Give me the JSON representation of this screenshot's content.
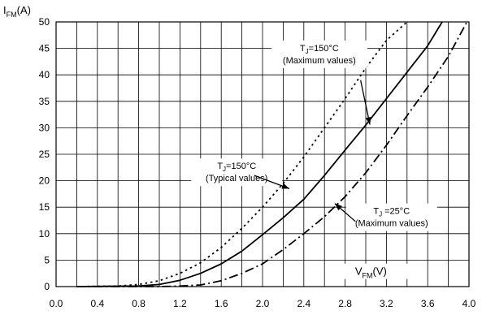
{
  "chart_data": {
    "type": "line",
    "title": "",
    "xlabel": "V_FM(V)",
    "ylabel": "I_FM(A)",
    "ylabel_main": "I",
    "ylabel_sub": "FM",
    "ylabel_unit": "(A)",
    "xlabel_main": "V",
    "xlabel_sub": "FM",
    "xlabel_unit": "(V)",
    "xlim": [
      0.0,
      4.0
    ],
    "ylim": [
      0,
      50
    ],
    "x_ticks": [
      "0.0",
      "0.4",
      "0.8",
      "1.2",
      "1.6",
      "2.0",
      "2.4",
      "2.8",
      "3.2",
      "3.6",
      "4.0"
    ],
    "y_ticks": [
      "0",
      "5",
      "10",
      "15",
      "20",
      "25",
      "30",
      "35",
      "40",
      "45",
      "50"
    ],
    "grid": true,
    "series": [
      {
        "style": "dotted",
        "x": [
          0.2,
          0.6,
          0.8,
          1.0,
          1.2,
          1.4,
          1.6,
          1.8,
          2.0,
          2.2,
          2.4,
          2.6,
          2.8,
          3.0,
          3.2,
          3.4
        ],
        "y": [
          0,
          0.1,
          0.4,
          1.1,
          2.5,
          4.5,
          7.4,
          11.0,
          15.0,
          19.5,
          24.5,
          30.0,
          35.5,
          41.3,
          46.5,
          50
        ]
      },
      {
        "style": "solid",
        "x": [
          0.2,
          0.8,
          1.0,
          1.2,
          1.4,
          1.6,
          1.8,
          2.0,
          2.2,
          2.4,
          2.6,
          2.8,
          3.0,
          3.2,
          3.4,
          3.6,
          3.74
        ],
        "y": [
          0,
          0.1,
          0.4,
          1.2,
          2.5,
          4.3,
          6.7,
          9.8,
          13.0,
          16.5,
          21.0,
          25.8,
          30.5,
          35.5,
          40.5,
          45.5,
          50
        ]
      },
      {
        "style": "dash-dot",
        "x": [
          0.2,
          1.0,
          1.2,
          1.4,
          1.6,
          1.8,
          2.0,
          2.2,
          2.4,
          2.6,
          2.8,
          3.0,
          3.2,
          3.4,
          3.6,
          3.8,
          3.98
        ],
        "y": [
          0,
          0,
          0.1,
          0.3,
          1.1,
          2.5,
          4.3,
          7.0,
          10.0,
          13.2,
          17.0,
          21.5,
          26.7,
          32.3,
          37.7,
          43.5,
          50
        ]
      }
    ],
    "annotations": [
      {
        "line1_main": "T",
        "line1_sub": "J",
        "line1_rest": "=150°C",
        "line2": "(Maximum values)",
        "arrow_to": [
          3.04,
          30.6
        ]
      },
      {
        "line1_main": "T",
        "line1_sub": "J",
        "line1_rest": "=150°C",
        "line2": "(Typical  values)",
        "arrow_to": [
          2.26,
          18.5
        ]
      },
      {
        "line1_main": "T",
        "line1_sub": "J",
        "line1_rest": " =25°C",
        "line2": "(Maximum values)",
        "arrow_to": [
          2.7,
          15.7
        ]
      }
    ]
  },
  "colors": {
    "line": "#000000",
    "grid": "#000000",
    "background": "#ffffff"
  }
}
